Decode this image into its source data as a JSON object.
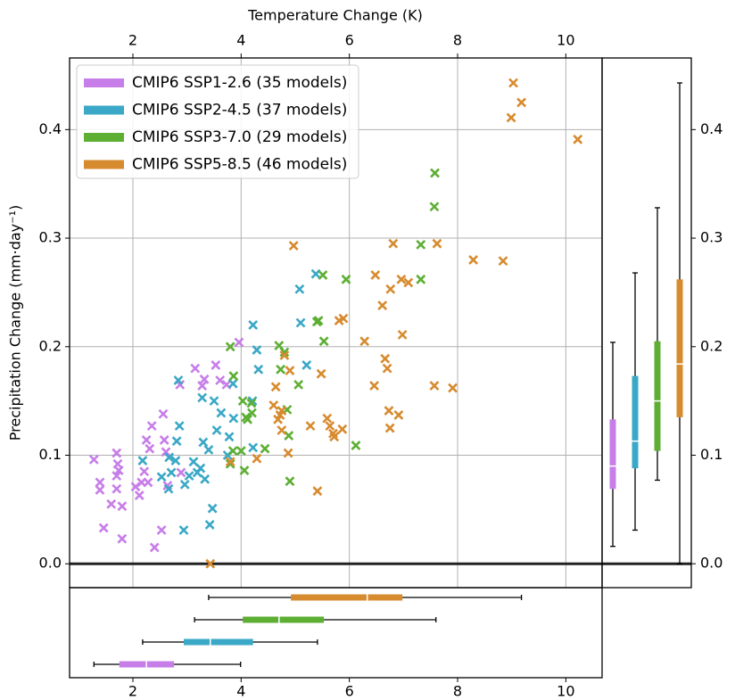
{
  "chart_data": {
    "type": "scatter",
    "x_label": "Temperature Change (K)",
    "y_label": "Precipitation Change (mm·day⁻¹)",
    "xlim": [
      0.83,
      10.67
    ],
    "ylim": [
      -0.022,
      0.466
    ],
    "xticks": [
      2,
      4,
      6,
      8,
      10
    ],
    "yticks": [
      {
        "value": 0,
        "label": "0.0"
      },
      0.1,
      0.2,
      0.3,
      0.4
    ],
    "grid": true,
    "legend": "upper left",
    "series": [
      {
        "name": "CMIP6 SSP1-2.6 (35 models)",
        "color": "#c77ee8",
        "x": [
          1.28,
          1.39,
          1.39,
          1.46,
          1.6,
          1.7,
          1.72,
          1.7,
          1.7,
          1.8,
          1.8,
          1.74,
          2.05,
          2.12,
          2.16,
          2.21,
          2.25,
          2.28,
          2.31,
          2.35,
          2.4,
          2.53,
          2.56,
          2.58,
          2.61,
          2.64,
          2.87,
          2.89,
          3.15,
          3.28,
          3.32,
          3.61,
          3.53,
          3.73,
          3.96
        ],
        "y": [
          0.096,
          0.075,
          0.068,
          0.033,
          0.055,
          0.102,
          0.092,
          0.081,
          0.069,
          0.053,
          0.023,
          0.086,
          0.071,
          0.063,
          0.075,
          0.085,
          0.114,
          0.075,
          0.106,
          0.127,
          0.015,
          0.031,
          0.138,
          0.114,
          0.103,
          0.072,
          0.165,
          0.084,
          0.18,
          0.164,
          0.17,
          0.169,
          0.183,
          0.165,
          0.204
        ],
        "x_box": {
          "low": 1.28,
          "q1": 1.75,
          "median": 2.25,
          "q3": 2.76,
          "high": 3.99
        },
        "y_box": {
          "low": 0.016,
          "q1": 0.069,
          "median": 0.09,
          "q3": 0.133,
          "high": 0.204
        }
      },
      {
        "name": "CMIP6 SSP2-4.5 (37 models)",
        "color": "#3aa8c6",
        "x": [
          2.18,
          2.66,
          2.53,
          2.67,
          2.71,
          2.79,
          2.81,
          2.84,
          2.86,
          2.94,
          2.96,
          3.04,
          3.12,
          3.19,
          3.25,
          3.28,
          3.3,
          3.33,
          3.4,
          3.42,
          3.47,
          3.5,
          3.55,
          3.63,
          3.78,
          3.85,
          3.86,
          3.75,
          4.21,
          4.22,
          4.29,
          4.32,
          4.22,
          5.21,
          5.08,
          5.1,
          5.38
        ],
        "y": [
          0.095,
          0.069,
          0.08,
          0.098,
          0.084,
          0.095,
          0.113,
          0.169,
          0.127,
          0.031,
          0.073,
          0.081,
          0.094,
          0.084,
          0.088,
          0.153,
          0.112,
          0.078,
          0.105,
          0.036,
          0.051,
          0.15,
          0.123,
          0.139,
          0.117,
          0.166,
          0.134,
          0.1,
          0.15,
          0.22,
          0.197,
          0.179,
          0.107,
          0.183,
          0.253,
          0.222,
          0.267
        ],
        "x_box": {
          "low": 2.18,
          "q1": 2.94,
          "median": 3.43,
          "q3": 4.22,
          "high": 5.41
        },
        "y_box": {
          "low": 0.031,
          "q1": 0.088,
          "median": 0.113,
          "q3": 0.173,
          "high": 0.268
        }
      },
      {
        "name": "CMIP6 SSP3-7.0 (29 models)",
        "color": "#5daf34",
        "x": [
          3.8,
          3.86,
          3.85,
          4.03,
          4.09,
          4.12,
          4.19,
          4.2,
          4.06,
          4.0,
          4.44,
          4.7,
          4.85,
          4.88,
          4.9,
          5.06,
          5.43,
          5.51,
          5.53,
          5.94,
          6.12,
          7.32,
          7.32,
          7.57,
          7.58,
          3.8,
          4.8,
          4.73,
          5.4
        ],
        "y": [
          0.2,
          0.173,
          0.104,
          0.15,
          0.135,
          0.133,
          0.148,
          0.139,
          0.086,
          0.104,
          0.106,
          0.201,
          0.142,
          0.118,
          0.076,
          0.165,
          0.224,
          0.266,
          0.205,
          0.262,
          0.109,
          0.294,
          0.262,
          0.329,
          0.36,
          0.092,
          0.195,
          0.179,
          0.223
        ],
        "x_box": {
          "low": 3.14,
          "q1": 4.03,
          "median": 4.7,
          "q3": 5.53,
          "high": 7.6
        },
        "y_box": {
          "low": 0.077,
          "q1": 0.104,
          "median": 0.15,
          "q3": 0.205,
          "high": 0.328
        }
      },
      {
        "name": "CMIP6 SSP5-8.5 (46 models)",
        "color": "#d78b2f",
        "x": [
          3.43,
          3.8,
          4.29,
          4.64,
          4.6,
          4.72,
          4.75,
          4.75,
          4.8,
          4.9,
          4.87,
          4.97,
          5.28,
          5.41,
          5.48,
          5.59,
          5.64,
          5.72,
          5.87,
          5.81,
          5.89,
          6.28,
          6.46,
          6.48,
          6.61,
          6.66,
          6.7,
          6.73,
          6.75,
          6.76,
          6.81,
          6.91,
          6.96,
          6.98,
          7.57,
          7.62,
          7.91,
          8.29,
          8.84,
          8.99,
          9.03,
          9.18,
          10.22,
          7.09,
          4.68,
          5.7
        ],
        "y": [
          0.0,
          0.094,
          0.097,
          0.163,
          0.146,
          0.137,
          0.141,
          0.123,
          0.192,
          0.178,
          0.102,
          0.293,
          0.127,
          0.067,
          0.175,
          0.134,
          0.127,
          0.117,
          0.124,
          0.224,
          0.226,
          0.205,
          0.164,
          0.266,
          0.238,
          0.189,
          0.18,
          0.141,
          0.125,
          0.253,
          0.295,
          0.137,
          0.262,
          0.211,
          0.164,
          0.295,
          0.162,
          0.28,
          0.279,
          0.411,
          0.443,
          0.425,
          0.391,
          0.259,
          0.133,
          0.12
        ],
        "x_box": {
          "low": 3.4,
          "q1": 4.92,
          "median": 6.33,
          "q3": 6.98,
          "high": 9.18
        },
        "y_box": {
          "low": 0.0,
          "q1": 0.135,
          "median": 0.184,
          "q3": 0.262,
          "high": 0.443
        }
      }
    ]
  }
}
